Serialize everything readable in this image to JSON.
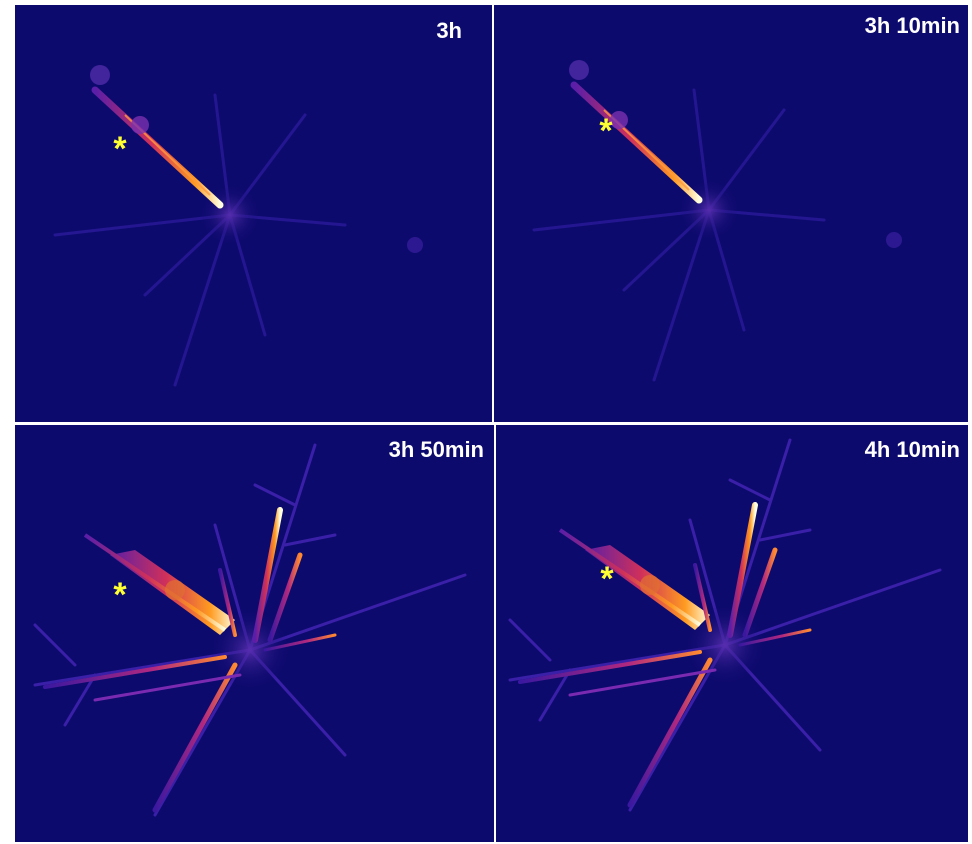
{
  "panels": [
    {
      "label": "3h",
      "marker": "*"
    },
    {
      "label": "3h 10min",
      "marker": "*"
    },
    {
      "label": "3h 50min",
      "marker": "*"
    },
    {
      "label": "4h 10min",
      "marker": "*"
    }
  ]
}
